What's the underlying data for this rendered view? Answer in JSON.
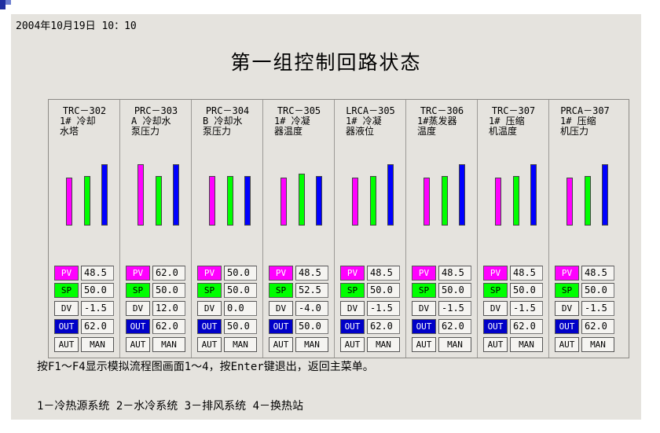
{
  "window": {
    "timestamp": "2004年10月19日 10：10",
    "title": "第一组控制回路状态"
  },
  "labels": {
    "pv": "PV",
    "sp": "SP",
    "dv": "DV",
    "out": "OUT",
    "aut": "AUT",
    "man": "MAN"
  },
  "colors": {
    "pv": "#ff00ff",
    "sp": "#00ff00",
    "out": "#0000ff",
    "background": "#e5e3de"
  },
  "loops": [
    {
      "name": "TRC－302",
      "desc": "1# 冷却\n水塔",
      "pv": "48.5",
      "sp": "50.0",
      "dv": "-1.5",
      "out": "62.0"
    },
    {
      "name": "PRC－303",
      "desc": "A 冷却水\n泵压力",
      "pv": "62.0",
      "sp": "50.0",
      "dv": "12.0",
      "out": "62.0"
    },
    {
      "name": "PRC－304",
      "desc": "B 冷却水\n泵压力",
      "pv": "50.0",
      "sp": "50.0",
      "dv": "0.0",
      "out": "50.0"
    },
    {
      "name": "TRC－305",
      "desc": "1# 冷凝\n器温度",
      "pv": "48.5",
      "sp": "52.5",
      "dv": "-4.0",
      "out": "50.0"
    },
    {
      "name": "LRCA－305",
      "desc": "1# 冷凝\n器液位",
      "pv": "48.5",
      "sp": "50.0",
      "dv": "-1.5",
      "out": "62.0"
    },
    {
      "name": "TRC－306",
      "desc": "1#蒸发器\n温度",
      "pv": "48.5",
      "sp": "50.0",
      "dv": "-1.5",
      "out": "62.0"
    },
    {
      "name": "TRC－307",
      "desc": "1# 压缩\n机温度",
      "pv": "48.5",
      "sp": "50.0",
      "dv": "-1.5",
      "out": "62.0"
    },
    {
      "name": "PRCA－307",
      "desc": "1# 压缩\n机压力",
      "pv": "48.5",
      "sp": "50.0",
      "dv": "-1.5",
      "out": "62.0"
    }
  ],
  "footer": {
    "help": "按F1～F4显示模拟流程图画面1～4，按Enter键退出，返回主菜单。",
    "systems": "1－冷热源系统 2－水冷系统 3－排风系统 4－换热站"
  }
}
